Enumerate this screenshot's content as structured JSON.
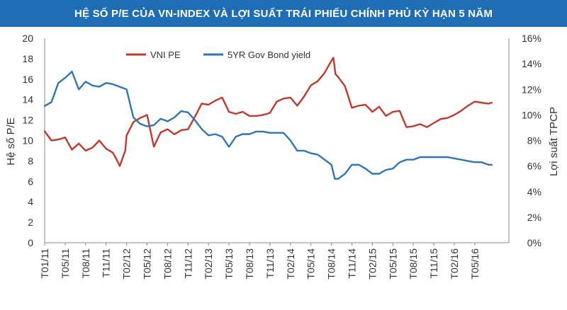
{
  "chart_data": {
    "type": "line",
    "title": "HỆ SỐ P/E CỦA VN-INDEX VÀ LỢI SUẤT TRÁI PHIẾU CHÍNH PHỦ KỲ HẠN 5 NĂM",
    "ylabel_left": "Hệ số P/E",
    "ylabel_right": "Lợi suất TPCP",
    "ylim_left": [
      0,
      20
    ],
    "ylim_right": [
      0,
      16
    ],
    "yticks_left": [
      "0",
      "2",
      "4",
      "6",
      "8",
      "10",
      "12",
      "14",
      "16",
      "18",
      "20"
    ],
    "yticks_right": [
      "0%",
      "2%",
      "4%",
      "6%",
      "8%",
      "10%",
      "12%",
      "14%",
      "16%"
    ],
    "xlim": [
      0,
      68
    ],
    "categories": [
      "T01/11",
      "T05/11",
      "T08/11",
      "T11/11",
      "T02/12",
      "T05/12",
      "T08/12",
      "T11/12",
      "T02/13",
      "T05/13",
      "T08/13",
      "T11/13",
      "T02/14",
      "T05/14",
      "T08/14",
      "T11/14",
      "T02/15",
      "T05/15",
      "T08/15",
      "T11/15",
      "T02/16",
      "T05/16"
    ],
    "category_x": [
      0,
      3,
      6,
      9,
      12,
      15,
      18,
      21,
      24,
      27,
      30,
      33,
      36,
      39,
      42,
      45,
      48,
      51,
      54,
      57,
      60,
      63
    ],
    "grid": false,
    "legend_position": "top-center",
    "series": [
      {
        "name": "VNI PE",
        "axis": "left",
        "color": "#c0392b",
        "x": [
          0,
          1,
          2,
          3,
          4,
          5,
          6,
          7,
          8,
          9,
          10,
          10.5,
          11,
          11.8,
          12,
          13,
          14,
          15,
          16,
          17,
          18,
          19,
          20,
          21,
          22,
          23,
          24,
          25,
          26,
          27,
          28,
          29,
          30,
          31,
          32,
          33,
          34,
          35,
          36,
          37,
          38,
          39,
          40,
          41,
          42,
          42.3,
          42.6,
          43,
          44,
          45,
          46,
          47,
          48,
          49,
          50,
          51,
          52,
          53,
          54,
          55,
          56,
          57,
          58,
          59,
          60,
          61,
          62,
          63,
          64,
          65,
          65.5
        ],
        "values": [
          10.9,
          10.0,
          10.1,
          10.3,
          9.1,
          9.7,
          9.0,
          9.3,
          10.0,
          9.2,
          8.8,
          8.2,
          7.5,
          9.0,
          10.5,
          11.8,
          12.2,
          12.5,
          9.4,
          10.8,
          11.1,
          10.6,
          11.0,
          11.1,
          12.3,
          13.6,
          13.5,
          13.9,
          14.2,
          12.8,
          12.6,
          12.8,
          12.4,
          12.4,
          12.5,
          12.7,
          13.8,
          14.1,
          14.2,
          13.4,
          14.3,
          15.4,
          15.8,
          16.6,
          17.8,
          18.1,
          16.5,
          16.2,
          15.3,
          13.2,
          13.4,
          13.5,
          12.8,
          13.3,
          12.4,
          12.8,
          12.9,
          11.3,
          11.4,
          11.6,
          11.3,
          11.7,
          12.1,
          12.2,
          12.5,
          12.9,
          13.4,
          13.8,
          13.7,
          13.6,
          13.7
        ]
      },
      {
        "name": "5YR Gov Bond yield",
        "axis": "right",
        "color": "#2e75b6",
        "x": [
          0,
          1,
          2,
          3,
          4,
          5,
          6,
          7,
          8,
          9,
          10,
          11,
          12,
          13,
          14,
          15,
          16,
          17,
          18,
          19,
          20,
          21,
          22,
          23,
          24,
          25,
          26,
          27,
          28,
          29,
          30,
          31,
          32,
          33,
          34,
          35,
          36,
          37,
          38,
          39,
          40,
          41,
          42,
          42.5,
          43,
          44,
          45,
          46,
          47,
          48,
          49,
          50,
          51,
          52,
          53,
          54,
          55,
          56,
          57,
          58,
          59,
          60,
          61,
          62,
          63,
          64,
          65,
          65.5
        ],
        "values": [
          10.7,
          11.0,
          12.5,
          12.9,
          13.4,
          12.0,
          12.6,
          12.3,
          12.2,
          12.5,
          12.4,
          12.2,
          12.0,
          9.8,
          9.3,
          9.1,
          9.2,
          9.7,
          9.5,
          9.8,
          10.3,
          10.2,
          9.6,
          8.9,
          8.4,
          8.5,
          8.3,
          7.5,
          8.3,
          8.5,
          8.5,
          8.7,
          8.7,
          8.6,
          8.6,
          8.6,
          8.0,
          7.2,
          7.2,
          7.0,
          6.9,
          6.5,
          6.1,
          5.0,
          5.0,
          5.4,
          6.1,
          6.1,
          5.8,
          5.4,
          5.4,
          5.7,
          5.8,
          6.3,
          6.5,
          6.5,
          6.7,
          6.7,
          6.7,
          6.7,
          6.7,
          6.6,
          6.5,
          6.4,
          6.3,
          6.3,
          6.1,
          6.1
        ]
      }
    ]
  }
}
